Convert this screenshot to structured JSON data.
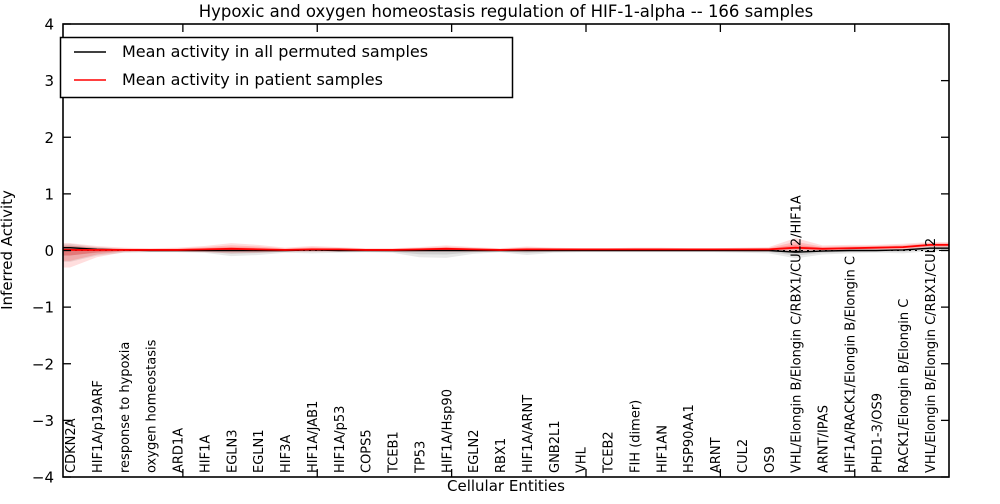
{
  "legend": {
    "items": [
      {
        "label": "Mean activity in all permuted samples",
        "color": "#000000"
      },
      {
        "label": "Mean activity in patient samples",
        "color": "#ff0000"
      }
    ]
  },
  "colors": {
    "permuted_line": "#000000",
    "patient_line": "#ff0000",
    "permuted_band": "#444444",
    "patient_band": "#ff0000",
    "zero_line": "#000000",
    "spine": "#000000"
  },
  "chart_data": {
    "type": "line",
    "title": "Hypoxic and oxygen homeostasis regulation of HIF-1-alpha -- 166 samples",
    "xlabel": "Cellular Entities",
    "ylabel": "Inferred Activity",
    "ylim": [
      -4,
      4
    ],
    "yticks": [
      -4,
      -3,
      -2,
      -1,
      0,
      1,
      2,
      3,
      4
    ],
    "grid": false,
    "zero_line": "dotted",
    "legend_position": "upper left",
    "sample_count": "166 samples",
    "categories": [
      "CDKN2A",
      "HIF1A/p19ARF",
      "response to hypoxia",
      "oxygen homeostasis",
      "ARD1A",
      "HIF1A",
      "EGLN3",
      "EGLN1",
      "HIF3A",
      "HIF1A/JAB1",
      "HIF1A/p53",
      "COPS5",
      "TCEB1",
      "TP53",
      "HIF1A/Hsp90",
      "EGLN2",
      "RBX1",
      "HIF1A/ARNT",
      "GNB2L1",
      "VHL",
      "TCEB2",
      "FIH (dimer)",
      "HIF1AN",
      "HSP90AA1",
      "ARNT",
      "CUL2",
      "OS9",
      "VHL/Elongin B/Elongin C/RBX1/CUL2/HIF1A",
      "ARNT/IPAS",
      "HIF1A/RACK1/Elongin B/Elongin C",
      "PHD1-3/OS9",
      "RACK1/Elongin B/Elongin C",
      "VHL/Elongin B/Elongin C/RBX1/CUL2"
    ],
    "series": [
      {
        "name": "Mean activity in all permuted samples",
        "color": "#000000",
        "values": [
          0.05,
          0.02,
          0.01,
          0.0,
          0.0,
          0.0,
          0.0,
          0.0,
          0.0,
          0.01,
          0.0,
          0.0,
          0.0,
          0.0,
          0.0,
          0.0,
          0.0,
          0.0,
          0.0,
          0.0,
          0.0,
          0.0,
          0.0,
          0.0,
          0.0,
          0.0,
          0.0,
          -0.03,
          -0.01,
          0.0,
          0.0,
          0.01,
          0.04
        ],
        "band_lo": [
          -0.2,
          -0.09,
          -0.04,
          -0.03,
          -0.03,
          -0.04,
          -0.1,
          -0.08,
          -0.04,
          -0.05,
          -0.04,
          -0.03,
          -0.04,
          -0.12,
          -0.13,
          -0.06,
          -0.03,
          -0.08,
          -0.04,
          -0.03,
          -0.03,
          -0.03,
          -0.03,
          -0.03,
          -0.03,
          -0.04,
          -0.05,
          -0.14,
          -0.07,
          -0.05,
          -0.04,
          -0.05,
          -0.01
        ],
        "band_hi": [
          0.12,
          0.06,
          0.03,
          0.02,
          0.02,
          0.03,
          0.04,
          0.03,
          0.02,
          0.03,
          0.02,
          0.02,
          0.02,
          0.03,
          0.03,
          0.02,
          0.02,
          0.03,
          0.02,
          0.02,
          0.02,
          0.02,
          0.02,
          0.02,
          0.02,
          0.02,
          0.02,
          0.05,
          0.02,
          0.02,
          0.02,
          0.03,
          0.08
        ]
      },
      {
        "name": "Mean activity in patient samples",
        "color": "#ff0000",
        "values": [
          0.01,
          0.01,
          0.01,
          0.01,
          0.01,
          0.02,
          0.03,
          0.02,
          0.01,
          0.02,
          0.02,
          0.01,
          0.01,
          0.02,
          0.03,
          0.02,
          0.01,
          0.02,
          0.02,
          0.02,
          0.02,
          0.02,
          0.02,
          0.02,
          0.02,
          0.02,
          0.02,
          0.05,
          0.03,
          0.04,
          0.05,
          0.06,
          0.1
        ],
        "band_lo": [
          -0.3,
          -0.12,
          -0.03,
          -0.02,
          -0.02,
          -0.03,
          -0.05,
          -0.04,
          -0.02,
          -0.02,
          -0.02,
          -0.01,
          -0.02,
          -0.02,
          -0.02,
          -0.02,
          -0.01,
          -0.02,
          -0.01,
          -0.01,
          -0.01,
          -0.01,
          -0.01,
          -0.01,
          -0.01,
          -0.01,
          -0.01,
          -0.01,
          0.0,
          0.0,
          0.01,
          0.01,
          0.05
        ],
        "band_hi": [
          0.13,
          0.08,
          0.05,
          0.04,
          0.05,
          0.08,
          0.13,
          0.1,
          0.05,
          0.08,
          0.06,
          0.04,
          0.04,
          0.06,
          0.09,
          0.06,
          0.04,
          0.07,
          0.05,
          0.04,
          0.04,
          0.05,
          0.05,
          0.04,
          0.04,
          0.05,
          0.06,
          0.22,
          0.09,
          0.1,
          0.1,
          0.12,
          0.15
        ]
      }
    ]
  }
}
